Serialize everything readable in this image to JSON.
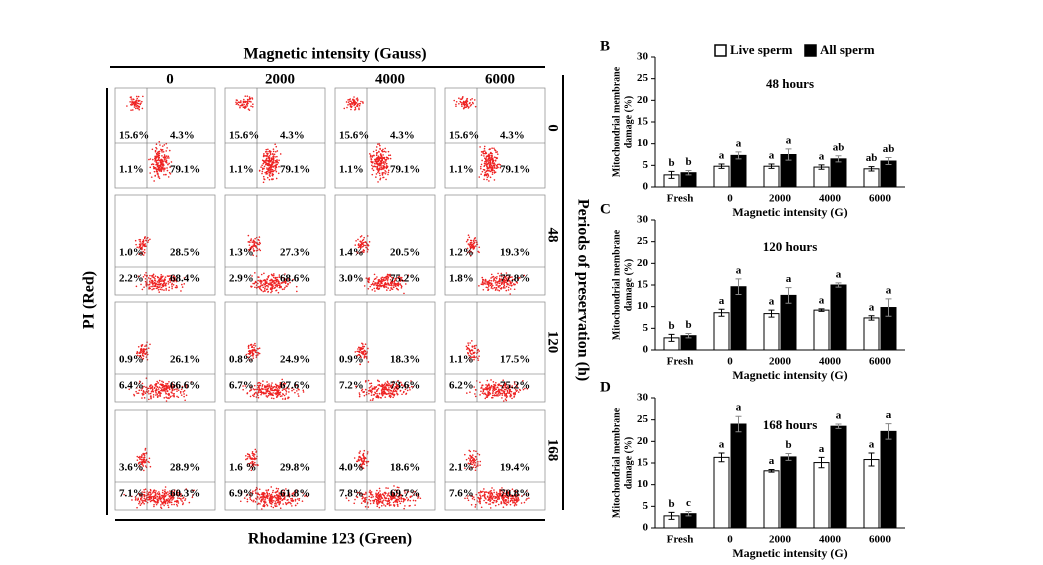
{
  "flow": {
    "title": "Magnetic intensity (Gauss)",
    "columns": [
      "0",
      "2000",
      "4000",
      "6000"
    ],
    "rows": [
      "0",
      "48",
      "120",
      "168"
    ],
    "row_axis_label": "Periods of preservation (h)",
    "y_label": "PI (Red)",
    "x_label": "Rhodamine 123 (Green)",
    "quadrants": [
      [
        [
          "15.6%",
          "4.3%",
          "1.1%",
          "79.1%"
        ],
        [
          "15.6%",
          "4.3%",
          "1.1%",
          "79.1%"
        ],
        [
          "15.6%",
          "4.3%",
          "1.1%",
          "79.1%"
        ],
        [
          "15.6%",
          "4.3%",
          "1.1%",
          "79.1%"
        ]
      ],
      [
        [
          "1.0%",
          "28.5%",
          "2.2%",
          "68.4%"
        ],
        [
          "1.3%",
          "27.3%",
          "2.9%",
          "68.6%"
        ],
        [
          "1.4%",
          "20.5%",
          "3.0%",
          "75.2%"
        ],
        [
          "1.2%",
          "19.3%",
          "1.8%",
          "77.8%"
        ]
      ],
      [
        [
          "0.9%",
          "26.1%",
          "6.4%",
          "66.6%"
        ],
        [
          "0.8%",
          "24.9%",
          "6.7%",
          "67.6%"
        ],
        [
          "0.9%",
          "18.3%",
          "7.2%",
          "73.6%"
        ],
        [
          "1.1%",
          "17.5%",
          "6.2%",
          "75.2%"
        ]
      ],
      [
        [
          "3.6%",
          "28.9%",
          "7.1%",
          "60.3%"
        ],
        [
          "1.6 %",
          "29.8%",
          "6.9%",
          "61.8%"
        ],
        [
          "4.0%",
          "18.6%",
          "7.8%",
          "69.7%"
        ],
        [
          "2.1%",
          "19.4%",
          "7.6%",
          "70.8%"
        ]
      ]
    ]
  },
  "chart_data": [
    {
      "type": "bar",
      "panel": "B",
      "title": "48 hours",
      "y_label": [
        "Mitochondrial membrane",
        "damage (%)"
      ],
      "x_label": "Magnetic intensity (G)",
      "categories": [
        "Fresh",
        "0",
        "2000",
        "4000",
        "6000"
      ],
      "ylim": [
        0,
        30
      ],
      "yticks": [
        0,
        5,
        10,
        15,
        20,
        25,
        30
      ],
      "legend": "top",
      "series": [
        {
          "name": "Live sperm",
          "color": "#ffffff",
          "values": [
            2.8,
            4.8,
            4.8,
            4.6,
            4.2
          ],
          "errors": [
            0.8,
            0.5,
            0.5,
            0.5,
            0.5
          ],
          "letters": [
            "b",
            "a",
            "a",
            "a",
            "ab"
          ]
        },
        {
          "name": "All sperm",
          "color": "#000000",
          "values": [
            3.3,
            7.3,
            7.5,
            6.5,
            6.0
          ],
          "errors": [
            0.5,
            0.8,
            1.3,
            0.7,
            0.8
          ],
          "letters": [
            "b",
            "a",
            "a",
            "ab",
            "ab"
          ]
        }
      ]
    },
    {
      "type": "bar",
      "panel": "C",
      "title": "120 hours",
      "y_label": [
        "Mitochondrial membrane",
        "damage (%)"
      ],
      "x_label": "Magnetic intensity (G)",
      "categories": [
        "Fresh",
        "0",
        "2000",
        "4000",
        "6000"
      ],
      "ylim": [
        0,
        30
      ],
      "yticks": [
        0,
        5,
        10,
        15,
        20,
        25,
        30
      ],
      "series": [
        {
          "color": "#ffffff",
          "values": [
            2.8,
            8.6,
            8.4,
            9.2,
            7.4
          ],
          "errors": [
            0.8,
            0.8,
            0.8,
            0.3,
            0.5
          ],
          "letters": [
            "b",
            "a",
            "a",
            "a",
            "a"
          ]
        },
        {
          "color": "#000000",
          "values": [
            3.3,
            14.6,
            12.6,
            15.0,
            9.8
          ],
          "errors": [
            0.5,
            1.8,
            1.8,
            0.5,
            2.0
          ],
          "letters": [
            "b",
            "a",
            "a",
            "a",
            "a"
          ]
        }
      ]
    },
    {
      "type": "bar",
      "panel": "D",
      "title": "168 hours",
      "y_label": [
        "Mitochondrial membrane",
        "damage (%)"
      ],
      "x_label": "Magnetic intensity (G)",
      "categories": [
        "Fresh",
        "0",
        "2000",
        "4000",
        "6000"
      ],
      "ylim": [
        0,
        30
      ],
      "yticks": [
        0,
        5,
        10,
        15,
        20,
        25,
        30
      ],
      "series": [
        {
          "color": "#ffffff",
          "values": [
            2.8,
            16.3,
            13.2,
            15.1,
            15.8
          ],
          "errors": [
            0.8,
            1.0,
            0.3,
            1.2,
            1.5
          ],
          "letters": [
            "b",
            "a",
            "a",
            "a",
            "a"
          ]
        },
        {
          "color": "#000000",
          "values": [
            3.3,
            24.0,
            16.4,
            23.5,
            22.3
          ],
          "errors": [
            0.5,
            1.8,
            0.8,
            0.5,
            1.8
          ],
          "letters": [
            "c",
            "a",
            "b",
            "a",
            "a"
          ]
        }
      ]
    }
  ]
}
